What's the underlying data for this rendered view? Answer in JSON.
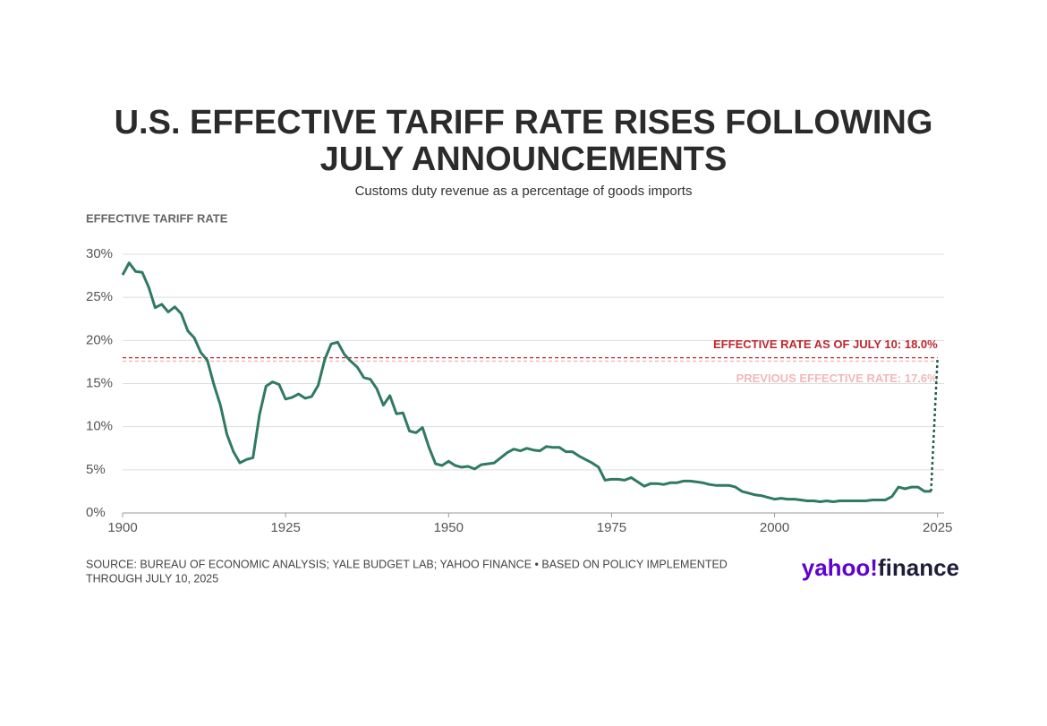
{
  "chart_data": {
    "type": "line",
    "title_lines": [
      "U.S. EFFECTIVE TARIFF RATE RISES FOLLOWING",
      "JULY ANNOUNCEMENTS"
    ],
    "subtitle": "Customs duty revenue as a percentage of goods imports",
    "y_label": "EFFECTIVE TARIFF RATE",
    "xlim": [
      1900,
      2026
    ],
    "ylim": [
      0,
      30
    ],
    "xticks": [
      1900,
      1925,
      1950,
      1975,
      2000,
      2025
    ],
    "yticks": [
      {
        "value": 0,
        "label": "0%"
      },
      {
        "value": 5,
        "label": "5%"
      },
      {
        "value": 10,
        "label": "10%"
      },
      {
        "value": 15,
        "label": "15%"
      },
      {
        "value": 20,
        "label": "20%"
      },
      {
        "value": 25,
        "label": "25%"
      },
      {
        "value": 30,
        "label": "30%"
      }
    ],
    "grid": true,
    "series": [
      {
        "color": "#2e7a62",
        "dash": false,
        "x": [
          1900,
          1901,
          1902,
          1903,
          1904,
          1905,
          1906,
          1907,
          1908,
          1909,
          1910,
          1911,
          1912,
          1913,
          1914,
          1915,
          1916,
          1917,
          1918,
          1919,
          1920,
          1921,
          1922,
          1923,
          1924,
          1925,
          1926,
          1927,
          1928,
          1929,
          1930,
          1931,
          1932,
          1933,
          1934,
          1935,
          1936,
          1937,
          1938,
          1939,
          1940,
          1941,
          1942,
          1943,
          1944,
          1945,
          1946,
          1947,
          1948,
          1949,
          1950,
          1951,
          1952,
          1953,
          1954,
          1955,
          1956,
          1957,
          1958,
          1959,
          1960,
          1961,
          1962,
          1963,
          1964,
          1965,
          1966,
          1967,
          1968,
          1969,
          1970,
          1971,
          1972,
          1973,
          1974,
          1975,
          1976,
          1977,
          1978,
          1979,
          1980,
          1981,
          1982,
          1983,
          1984,
          1985,
          1986,
          1987,
          1988,
          1989,
          1990,
          1991,
          1992,
          1993,
          1994,
          1995,
          1996,
          1997,
          1998,
          1999,
          2000,
          2001,
          2002,
          2003,
          2004,
          2005,
          2006,
          2007,
          2008,
          2009,
          2010,
          2011,
          2012,
          2013,
          2014,
          2015,
          2016,
          2017,
          2018,
          2019,
          2020,
          2021,
          2022,
          2023,
          2024
        ],
        "values": [
          27.6,
          29.0,
          28.0,
          27.9,
          26.2,
          23.8,
          24.2,
          23.3,
          23.9,
          23.1,
          21.1,
          20.3,
          18.6,
          17.7,
          14.9,
          12.5,
          9.1,
          7.1,
          5.8,
          6.2,
          6.4,
          11.4,
          14.7,
          15.2,
          14.9,
          13.2,
          13.4,
          13.8,
          13.3,
          13.5,
          14.8,
          17.8,
          19.6,
          19.8,
          18.4,
          17.6,
          16.9,
          15.7,
          15.5,
          14.4,
          12.5,
          13.6,
          11.5,
          11.6,
          9.5,
          9.3,
          9.9,
          7.6,
          5.7,
          5.5,
          6.0,
          5.5,
          5.3,
          5.4,
          5.1,
          5.6,
          5.7,
          5.8,
          6.4,
          7.0,
          7.4,
          7.2,
          7.5,
          7.3,
          7.2,
          7.7,
          7.6,
          7.6,
          7.1,
          7.1,
          6.6,
          6.2,
          5.8,
          5.3,
          3.8,
          3.9,
          3.9,
          3.8,
          4.1,
          3.6,
          3.1,
          3.4,
          3.4,
          3.3,
          3.5,
          3.5,
          3.7,
          3.7,
          3.6,
          3.5,
          3.3,
          3.2,
          3.2,
          3.2,
          3.0,
          2.5,
          2.3,
          2.1,
          2.0,
          1.8,
          1.6,
          1.7,
          1.6,
          1.6,
          1.5,
          1.4,
          1.4,
          1.3,
          1.4,
          1.3,
          1.4,
          1.4,
          1.4,
          1.4,
          1.4,
          1.5,
          1.5,
          1.5,
          1.9,
          3.0,
          2.8,
          3.0,
          3.0,
          2.5,
          2.5
        ]
      },
      {
        "color": "#1f5e49",
        "dash": true,
        "x": [
          2024,
          2025
        ],
        "values": [
          2.5,
          18.0
        ]
      }
    ],
    "reference_lines": [
      {
        "value": 18.0,
        "label": "EFFECTIVE RATE AS OF JULY 10: 18.0%",
        "color": "#c0262d"
      },
      {
        "value": 17.6,
        "label": "PREVIOUS EFFECTIVE RATE: 17.6%",
        "color": "#f2b8b8"
      }
    ],
    "source_lines": [
      "SOURCE: BUREAU OF ECONOMIC ANALYSIS; YALE BUDGET LAB; YAHOO FINANCE • BASED ON POLICY IMPLEMENTED",
      "THROUGH JULY 10, 2025"
    ],
    "logo": {
      "brand": "yahoo!",
      "product": "finance"
    }
  }
}
